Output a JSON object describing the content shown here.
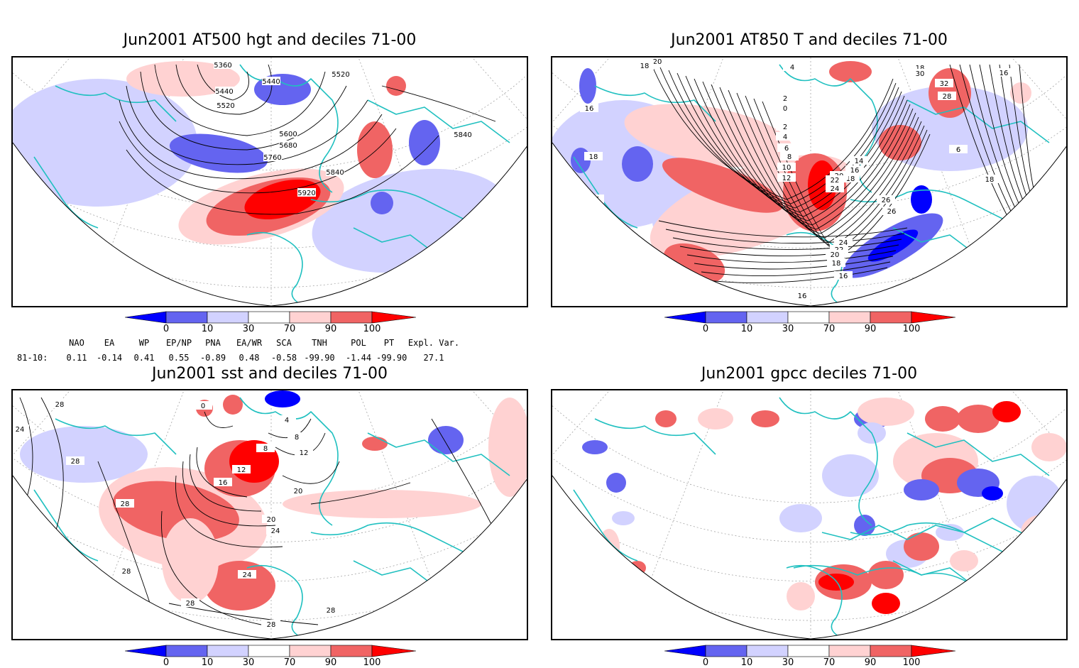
{
  "panels": [
    {
      "title": "Jun2001 AT500 hgt and deciles 71-00",
      "contours": [
        "5360",
        "5440",
        "5440",
        "5520",
        "5520",
        "5600",
        "5680",
        "5760",
        "5840",
        "5840",
        "5920"
      ]
    },
    {
      "title": "Jun2001 AT850 T and deciles 71-00",
      "contours": [
        "20",
        "18",
        "16",
        "18",
        "16",
        "4",
        "2",
        "0",
        "2",
        "4",
        "6",
        "8",
        "10",
        "12",
        "14",
        "16",
        "18",
        "20",
        "22",
        "24",
        "26",
        "26",
        "24",
        "22",
        "20",
        "18",
        "16",
        "16",
        "18",
        "30",
        "32",
        "28",
        "6",
        "18",
        "16"
      ]
    },
    {
      "title": "Jun2001 sst and deciles 71-00",
      "contours": [
        "24",
        "28",
        "28",
        "28",
        "28",
        "0",
        "4",
        "8",
        "8",
        "12",
        "12",
        "16",
        "20",
        "20",
        "24",
        "24",
        "28",
        "28",
        "28"
      ]
    },
    {
      "title": "Jun2001 gpcc deciles 71-00",
      "contours": []
    }
  ],
  "colorbar": {
    "labels": [
      "0",
      "10",
      "30",
      "70",
      "90",
      "100"
    ],
    "colors": [
      "#0000ff",
      "#6464f0",
      "#d2d2ff",
      "#ffffff",
      "#ffd2d2",
      "#f06464",
      "#ff0000"
    ]
  },
  "indices": {
    "headers": [
      "NAO",
      "EA",
      "WP",
      "EP/NP",
      "PNA",
      "EA/WR",
      "SCA",
      "TNH",
      "POL",
      "PT",
      "Expl. Var."
    ],
    "row_label": "81-10:",
    "values": [
      "0.11",
      "-0.14",
      "0.41",
      "0.55",
      "-0.89",
      "0.48",
      "-0.58",
      "-99.90",
      "-1.44",
      "-99.90",
      "27.1"
    ]
  },
  "colors": {
    "coast": "#20c0c0",
    "contour": "#000000",
    "grid": "#999999"
  }
}
